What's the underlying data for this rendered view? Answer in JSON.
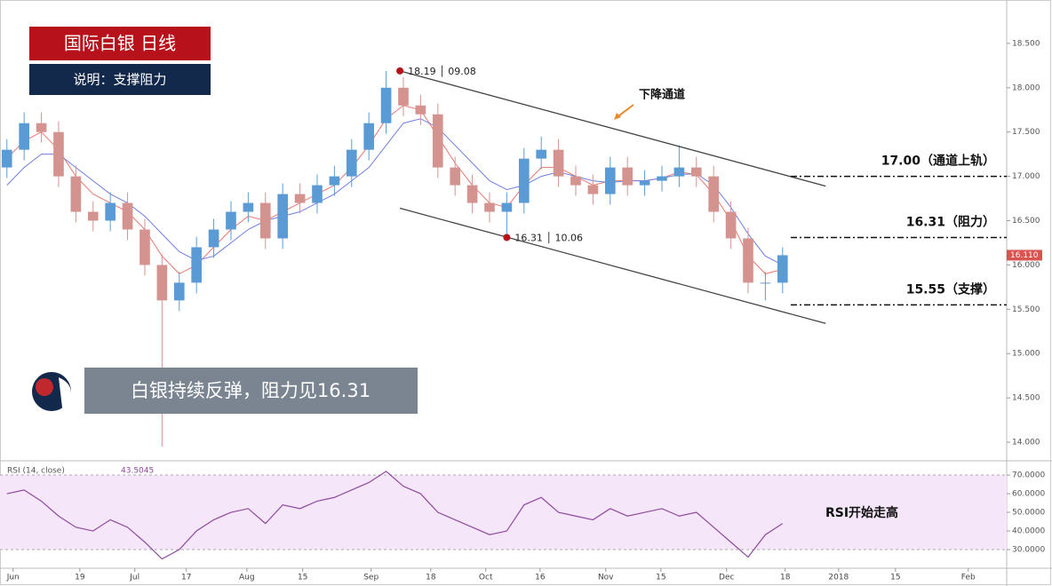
{
  "chart_data": [
    {
      "type": "candlestick",
      "title": "国际白银  日线",
      "subtitle": "说明：支撑阻力",
      "callout": "白银持续反弹，阻力见16.31",
      "up_color": "#5b9bd5",
      "down_color": "#d4938f",
      "candles": {
        "open": [
          17.1,
          17.3,
          17.6,
          17.5,
          17.0,
          16.6,
          16.5,
          16.7,
          16.4,
          16.0,
          15.6,
          15.8,
          16.2,
          16.4,
          16.6,
          16.7,
          16.3,
          16.8,
          16.7,
          16.9,
          17.0,
          17.3,
          17.6,
          18.0,
          17.8,
          17.7,
          17.1,
          16.9,
          16.7,
          16.6,
          16.7,
          17.2,
          17.3,
          17.0,
          16.9,
          16.8,
          17.1,
          16.9,
          16.95,
          17.0,
          17.1,
          17.0,
          16.6,
          16.3,
          15.8,
          15.8
        ],
        "high": [
          17.42,
          17.72,
          17.72,
          17.62,
          17.12,
          16.72,
          16.82,
          16.82,
          16.52,
          16.12,
          15.92,
          16.32,
          16.52,
          16.72,
          16.82,
          16.82,
          16.92,
          16.92,
          17.02,
          17.12,
          17.42,
          17.72,
          18.19,
          18.12,
          17.92,
          17.82,
          17.22,
          17.02,
          16.82,
          16.82,
          17.32,
          17.45,
          17.42,
          17.12,
          17.02,
          17.22,
          17.22,
          17.07,
          17.12,
          17.35,
          17.22,
          17.12,
          16.72,
          16.42,
          15.92,
          16.2
        ],
        "low": [
          16.98,
          17.18,
          17.38,
          16.88,
          16.48,
          16.38,
          16.38,
          16.28,
          15.88,
          13.95,
          15.48,
          15.68,
          16.08,
          16.28,
          16.48,
          16.18,
          16.18,
          16.58,
          16.58,
          16.78,
          16.88,
          17.18,
          17.48,
          17.68,
          17.58,
          16.98,
          16.78,
          16.58,
          16.48,
          16.31,
          16.58,
          17.08,
          16.88,
          16.78,
          16.68,
          16.68,
          16.78,
          16.78,
          16.83,
          16.88,
          16.88,
          16.48,
          16.18,
          15.68,
          15.6,
          15.68
        ],
        "close": [
          17.3,
          17.6,
          17.5,
          17.0,
          16.6,
          16.5,
          16.7,
          16.4,
          16.0,
          15.6,
          15.8,
          16.2,
          16.4,
          16.6,
          16.7,
          16.3,
          16.8,
          16.7,
          16.9,
          17.0,
          17.3,
          17.6,
          18.0,
          17.8,
          17.7,
          17.1,
          16.9,
          16.7,
          16.6,
          16.7,
          17.2,
          17.3,
          17.0,
          16.9,
          16.8,
          17.1,
          16.9,
          16.95,
          17.0,
          17.1,
          17.0,
          16.6,
          16.3,
          15.8,
          15.8,
          16.11
        ]
      },
      "series": [
        {
          "color": "#e8776f",
          "values": [
            17.2,
            17.4,
            17.5,
            17.3,
            17.0,
            16.8,
            16.7,
            16.6,
            16.4,
            16.1,
            15.9,
            16.0,
            16.2,
            16.4,
            16.55,
            16.5,
            16.6,
            16.7,
            16.8,
            16.9,
            17.1,
            17.35,
            17.65,
            17.8,
            17.75,
            17.45,
            17.15,
            16.9,
            16.7,
            16.65,
            16.9,
            17.1,
            17.1,
            17.0,
            16.9,
            16.95,
            16.95,
            16.95,
            16.98,
            17.05,
            17.02,
            16.8,
            16.5,
            16.1,
            15.9,
            15.95
          ]
        },
        {
          "color": "#6f7fe0",
          "values": [
            16.9,
            17.1,
            17.25,
            17.25,
            17.1,
            16.95,
            16.8,
            16.7,
            16.55,
            16.35,
            16.15,
            16.05,
            16.1,
            16.25,
            16.4,
            16.5,
            16.55,
            16.6,
            16.7,
            16.8,
            16.95,
            17.1,
            17.35,
            17.6,
            17.65,
            17.55,
            17.35,
            17.15,
            16.95,
            16.85,
            16.9,
            17.0,
            17.05,
            17.0,
            16.95,
            16.93,
            16.95,
            16.95,
            16.98,
            17.02,
            17.03,
            16.9,
            16.65,
            16.35,
            16.1,
            16.0
          ]
        }
      ],
      "xlim": [
        -0.4,
        58
      ],
      "xticks": [
        {
          "value": 0.36,
          "label": "Jun"
        },
        {
          "value": 4.23,
          "label": "19"
        },
        {
          "value": 7.42,
          "label": "Jul"
        },
        {
          "value": 10.41,
          "label": "17"
        },
        {
          "value": 13.92,
          "label": "Aug"
        },
        {
          "value": 17.16,
          "label": "15"
        },
        {
          "value": 21.13,
          "label": "Sep"
        },
        {
          "value": 24.59,
          "label": "18"
        },
        {
          "value": 27.78,
          "label": "Oct"
        },
        {
          "value": 30.93,
          "label": "16"
        },
        {
          "value": 34.74,
          "label": "Nov"
        },
        {
          "value": 37.94,
          "label": "15"
        },
        {
          "value": 41.75,
          "label": "Dec"
        },
        {
          "value": 45.15,
          "label": "18"
        },
        {
          "value": 48.25,
          "label": "2018"
        },
        {
          "value": 51.55,
          "label": "15"
        },
        {
          "value": 55.77,
          "label": "Feb"
        }
      ],
      "ylim": [
        13.8,
        18.99
      ],
      "yticks": [
        {
          "value": 14,
          "label": "14.000"
        },
        {
          "value": 14.5,
          "label": "14.500"
        },
        {
          "value": 15,
          "label": "15.000"
        },
        {
          "value": 15.5,
          "label": "15.500"
        },
        {
          "value": 16,
          "label": "16.000"
        },
        {
          "value": 16.5,
          "label": "16.500"
        },
        {
          "value": 17,
          "label": "17.000"
        },
        {
          "value": 17.5,
          "label": "17.500"
        },
        {
          "value": 18,
          "label": "18.000"
        },
        {
          "value": 18.5,
          "label": "18.500"
        }
      ],
      "last_price": {
        "value": 16.11,
        "label": "16.110"
      },
      "trendlines": [
        {
          "x": [
            22.8,
            47.5
          ],
          "y": [
            18.19,
            16.89
          ]
        },
        {
          "x": [
            22.8,
            47.5
          ],
          "y": [
            16.64,
            15.34
          ]
        }
      ],
      "points": [
        {
          "label": "18.19 │ 09.08",
          "x": 22.8,
          "y": 18.19
        },
        {
          "label": "16.31 │ 10.06",
          "x": 29,
          "y": 16.31
        }
      ],
      "levels": [
        {
          "value": 17.0,
          "label": "17.00（通道上轨）"
        },
        {
          "value": 16.31,
          "label": "16.31（阻力）"
        },
        {
          "value": 15.55,
          "label": "15.55（支撑）"
        }
      ],
      "channel_label": "下降通道"
    },
    {
      "type": "line",
      "title": "RSI (14, close)",
      "last_value": 43.5045,
      "annotation": "RSI开始走高",
      "color": "#8e4a9e",
      "band": [
        30,
        70
      ],
      "values": [
        60,
        62,
        56,
        48,
        42,
        40,
        46,
        42,
        34,
        25,
        30,
        40,
        46,
        50,
        52,
        44,
        54,
        52,
        56,
        58,
        62,
        66,
        72,
        64,
        60,
        50,
        46,
        42,
        38,
        40,
        54,
        58,
        50,
        48,
        46,
        52,
        48,
        50,
        52,
        48,
        50,
        42,
        34,
        26,
        38,
        44
      ],
      "ylim": [
        20,
        76.7
      ],
      "yticks": [
        {
          "value": 30,
          "label": "30.0000"
        },
        {
          "value": 40,
          "label": "40.0000"
        },
        {
          "value": 50,
          "label": "50.0000"
        },
        {
          "value": 60,
          "label": "60.0000"
        },
        {
          "value": 70,
          "label": "70.0000"
        }
      ]
    }
  ]
}
